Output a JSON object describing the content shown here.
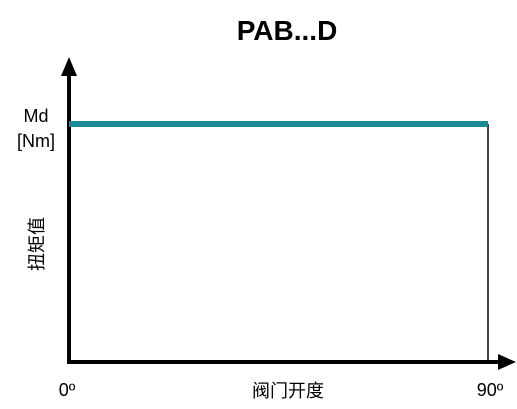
{
  "chart_data": {
    "type": "line",
    "title": "PAB...D",
    "xlabel": "阀门开度",
    "ylabel": "扭矩值",
    "ylabel_unit_top": "Md",
    "ylabel_unit_bottom": "[Nm]",
    "x_tick_labels": [
      "0º",
      "90º"
    ],
    "x": [
      0,
      90
    ],
    "xlim": [
      0,
      90
    ],
    "ylim": [
      0,
      1
    ],
    "grid": false,
    "series": [
      {
        "values": [
          1,
          1
        ],
        "color": "#1a8a94"
      }
    ],
    "axis_color": "#000000"
  }
}
